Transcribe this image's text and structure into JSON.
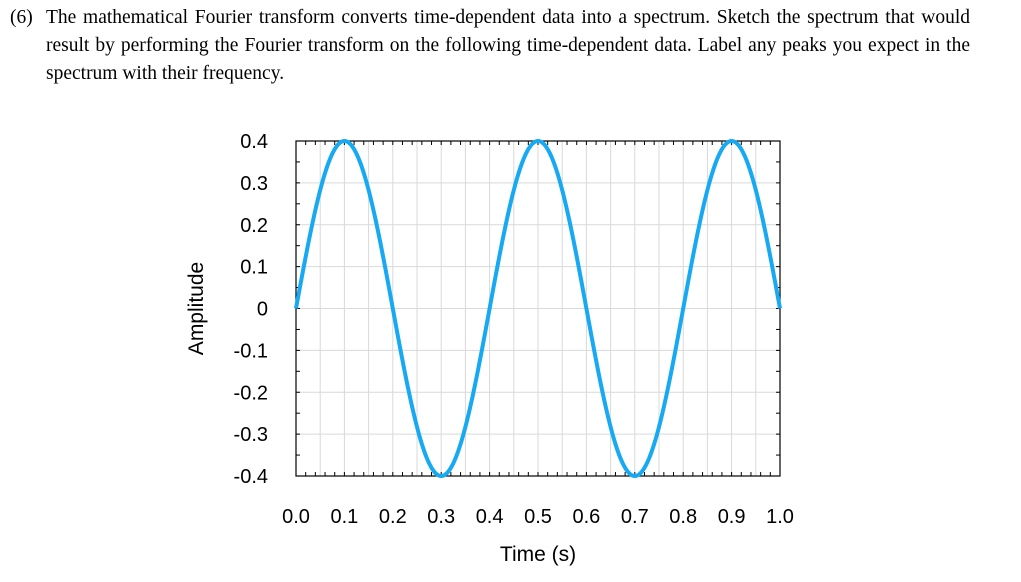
{
  "question": {
    "number": "(6)",
    "text": "The mathematical Fourier transform converts time-dependent data into a spectrum. Sketch the spectrum that would result by performing the Fourier transform on the following time-dependent data. Label any peaks you expect in the spectrum with their frequency."
  },
  "chart_data": {
    "type": "line",
    "title": "",
    "xlabel": "Time (s)",
    "ylabel": "Amplitude",
    "xlim": [
      0.0,
      1.0
    ],
    "ylim": [
      -0.4,
      0.4
    ],
    "x_ticks": [
      "0.0",
      "0.1",
      "0.2",
      "0.3",
      "0.4",
      "0.5",
      "0.6",
      "0.7",
      "0.8",
      "0.9",
      "1.0"
    ],
    "y_ticks": [
      "0.4",
      "0.3",
      "0.2",
      "0.1",
      "0",
      "-0.1",
      "-0.2",
      "-0.3",
      "-0.4"
    ],
    "grid": true,
    "series": [
      {
        "color": "#17a9f2",
        "x": [
          0.0,
          0.1,
          0.2,
          0.3,
          0.4,
          0.5,
          0.6,
          0.7,
          0.8,
          0.9,
          1.0
        ],
        "y": [
          0.0,
          0.4,
          0.0,
          -0.4,
          0.0,
          0.4,
          0.0,
          -0.4,
          0.0,
          0.4,
          0.0
        ],
        "shape": "sine",
        "amplitude": 0.4,
        "period": 0.4
      }
    ]
  }
}
